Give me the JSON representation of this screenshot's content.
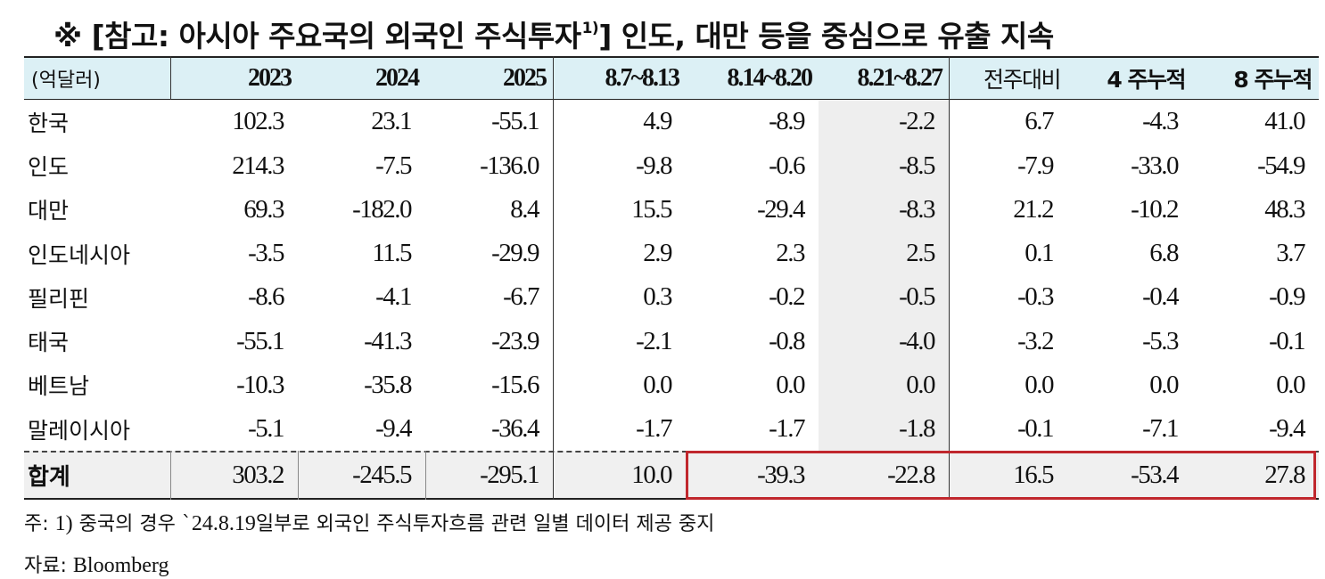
{
  "title": {
    "main": "※ [참고: 아시아 주요국의 외국인 주식투자",
    "sup": "1)",
    "tail": "] 인도, 대만 등을 중심으로 유출 지속"
  },
  "table": {
    "unit_label": "(억달러)",
    "headers": [
      "2023",
      "2024",
      "2025",
      "8.7~8.13",
      "8.14~8.20",
      "8.21~8.27",
      "전주대비",
      "4 주누적",
      "8 주누적"
    ],
    "rows": [
      {
        "name": "한국",
        "values": [
          "102.3",
          "23.1",
          "-55.1",
          "4.9",
          "-8.9",
          "-2.2",
          "6.7",
          "-4.3",
          "41.0"
        ]
      },
      {
        "name": "인도",
        "values": [
          "214.3",
          "-7.5",
          "-136.0",
          "-9.8",
          "-0.6",
          "-8.5",
          "-7.9",
          "-33.0",
          "-54.9"
        ]
      },
      {
        "name": "대만",
        "values": [
          "69.3",
          "-182.0",
          "8.4",
          "15.5",
          "-29.4",
          "-8.3",
          "21.2",
          "-10.2",
          "48.3"
        ]
      },
      {
        "name": "인도네시아",
        "values": [
          "-3.5",
          "11.5",
          "-29.9",
          "2.9",
          "2.3",
          "2.5",
          "0.1",
          "6.8",
          "3.7"
        ]
      },
      {
        "name": "필리핀",
        "values": [
          "-8.6",
          "-4.1",
          "-6.7",
          "0.3",
          "-0.2",
          "-0.5",
          "-0.3",
          "-0.4",
          "-0.9"
        ]
      },
      {
        "name": "태국",
        "values": [
          "-55.1",
          "-41.3",
          "-23.9",
          "-2.1",
          "-0.8",
          "-4.0",
          "-3.2",
          "-5.3",
          "-0.1"
        ]
      },
      {
        "name": "베트남",
        "values": [
          "-10.3",
          "-35.8",
          "-15.6",
          "0.0",
          "0.0",
          "0.0",
          "0.0",
          "0.0",
          "0.0"
        ]
      },
      {
        "name": "말레이시아",
        "values": [
          "-5.1",
          "-9.4",
          "-36.4",
          "-1.7",
          "-1.7",
          "-1.8",
          "-0.1",
          "-7.1",
          "-9.4"
        ]
      }
    ],
    "total": {
      "name": "합계",
      "values": [
        "303.2",
        "-245.5",
        "-295.1",
        "10.0",
        "-39.3",
        "-22.8",
        "16.5",
        "-53.4",
        "27.8"
      ]
    },
    "highlight_color": "#c0272d",
    "header_bg": "#dcf0f5"
  },
  "notes": {
    "note1_prefix": "주: ",
    "note1_num": "1)",
    "note1_text": " 중국의 경우 `",
    "note1_date": "24.8.19",
    "note1_rest": "일부로 외국인 주식투자흐름 관련 일별 데이터 제공 중지",
    "source_prefix": "자료: ",
    "source_name": "Bloomberg"
  }
}
